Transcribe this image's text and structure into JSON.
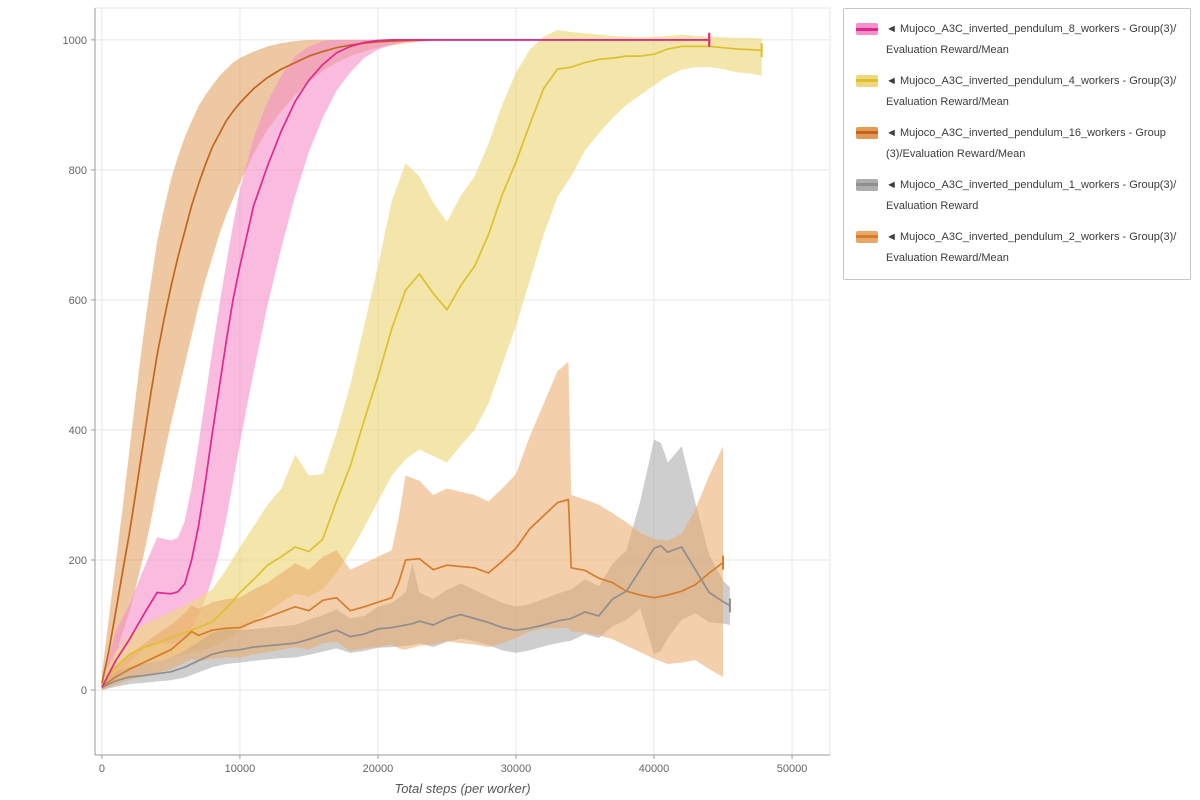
{
  "chart_data": {
    "type": "line",
    "title": "",
    "xlabel": "Total steps (per worker)",
    "ylabel": "",
    "xlim": [
      -500,
      52750
    ],
    "ylim": [
      -100,
      1049
    ],
    "xticks": [
      0,
      10000,
      20000,
      30000,
      40000,
      50000
    ],
    "yticks": [
      0,
      200,
      400,
      600,
      800,
      1000
    ],
    "grid": true,
    "legend_position": "outside-right",
    "series": [
      {
        "key": "8-workers",
        "name": "◄ Mujoco_A3C_inverted_pendulum_8_workers - Group(3)/Evaluation Reward/Mean",
        "color": "#e02890",
        "band_color": "#f590c8",
        "band_opacity": 0.6,
        "x": [
          0,
          1000,
          2000,
          3000,
          4000,
          5000,
          5500,
          6000,
          6500,
          7000,
          7500,
          8000,
          8500,
          9000,
          9500,
          10000,
          11000,
          12000,
          13000,
          14000,
          15000,
          16000,
          17000,
          18000,
          19000,
          20000,
          21000,
          22000,
          24000,
          26000,
          28000,
          30000,
          32000,
          34000,
          36000,
          38000,
          40000,
          42000,
          44000
        ],
        "y": [
          4,
          45,
          78,
          115,
          150,
          148,
          151,
          163,
          200,
          252,
          320,
          395,
          465,
          535,
          600,
          652,
          745,
          806,
          860,
          905,
          938,
          962,
          980,
          990,
          996,
          999,
          1000,
          1000,
          1000,
          1000,
          1000,
          1000,
          1000,
          1000,
          1000,
          1000,
          1000,
          1000,
          1000
        ],
        "lo": [
          0,
          20,
          42,
          62,
          72,
          70,
          72,
          80,
          95,
          115,
          140,
          172,
          212,
          262,
          320,
          380,
          490,
          592,
          680,
          760,
          828,
          880,
          922,
          950,
          972,
          985,
          993,
          997,
          1000,
          1000,
          1000,
          1000,
          1000,
          1000,
          1000,
          1000,
          1000,
          1000,
          1000
        ],
        "hi": [
          12,
          90,
          132,
          185,
          235,
          230,
          234,
          260,
          312,
          378,
          450,
          522,
          590,
          655,
          715,
          770,
          850,
          905,
          945,
          975,
          990,
          998,
          1000,
          1000,
          1000,
          1000,
          1000,
          1000,
          1000,
          1000,
          1000,
          1000,
          1000,
          1000,
          1000,
          1000,
          1000,
          1000,
          1000
        ]
      },
      {
        "key": "4-workers",
        "name": "◄ Mujoco_A3C_inverted_pendulum_4_workers - Group(3)/Evaluation Reward/Mean",
        "color": "#dec02f",
        "band_color": "#eed77e",
        "band_opacity": 0.65,
        "x": [
          0,
          1000,
          2000,
          3000,
          4000,
          5000,
          6000,
          7000,
          8000,
          9000,
          10000,
          11000,
          12000,
          13000,
          14000,
          15000,
          16000,
          17000,
          18000,
          19000,
          20000,
          21000,
          22000,
          23000,
          24000,
          25000,
          26000,
          27000,
          28000,
          29000,
          30000,
          31000,
          32000,
          33000,
          34000,
          35000,
          36000,
          37000,
          38000,
          39000,
          40000,
          41000,
          42000,
          43000,
          44000,
          45000,
          46000,
          47000,
          47800
        ],
        "y": [
          8,
          35,
          55,
          65,
          72,
          80,
          88,
          96,
          105,
          125,
          150,
          170,
          192,
          205,
          220,
          213,
          232,
          290,
          345,
          415,
          482,
          556,
          615,
          640,
          610,
          585,
          622,
          652,
          700,
          762,
          812,
          870,
          925,
          955,
          958,
          965,
          970,
          972,
          975,
          975,
          978,
          986,
          990,
          990,
          990,
          988,
          986,
          985,
          984
        ],
        "lo": [
          0,
          15,
          30,
          38,
          45,
          50,
          55,
          60,
          66,
          76,
          90,
          105,
          120,
          135,
          148,
          144,
          155,
          180,
          212,
          250,
          290,
          330,
          355,
          370,
          360,
          350,
          376,
          400,
          440,
          500,
          560,
          630,
          700,
          758,
          790,
          830,
          856,
          880,
          900,
          915,
          930,
          944,
          954,
          958,
          958,
          955,
          950,
          948,
          945
        ],
        "hi": [
          18,
          60,
          85,
          100,
          110,
          120,
          130,
          142,
          155,
          185,
          220,
          252,
          285,
          310,
          362,
          330,
          332,
          395,
          470,
          560,
          652,
          752,
          810,
          790,
          750,
          720,
          760,
          790,
          840,
          900,
          950,
          985,
          1005,
          1015,
          1012,
          1010,
          1008,
          1006,
          1005,
          1004,
          1005,
          1006,
          1008,
          1006,
          1005,
          1004,
          1003,
          1003,
          1002
        ]
      },
      {
        "key": "16-workers",
        "name": "◄ Mujoco_A3C_inverted_pendulum_16_workers - Group(3)/Evaluation Reward/Mean",
        "color": "#c4651d",
        "band_color": "#e09a55",
        "band_opacity": 0.55,
        "x": [
          0,
          500,
          1000,
          1500,
          2000,
          2500,
          3000,
          3500,
          4000,
          4500,
          5000,
          5500,
          6000,
          6500,
          7000,
          7500,
          8000,
          8500,
          9000,
          9500,
          10000,
          11000,
          12000,
          13000,
          14000,
          15000,
          16000,
          17000,
          18000,
          19000,
          20000,
          22000,
          24000,
          26000,
          28000,
          30000,
          32000,
          34000,
          36000,
          38000,
          40000,
          42000,
          44000
        ],
        "y": [
          10,
          60,
          120,
          182,
          242,
          310,
          380,
          450,
          515,
          570,
          620,
          665,
          705,
          745,
          778,
          808,
          835,
          855,
          875,
          890,
          903,
          925,
          942,
          955,
          965,
          975,
          982,
          988,
          992,
          995,
          997,
          999,
          1000,
          1000,
          1000,
          1000,
          1000,
          1000,
          1000,
          1000,
          1000,
          1000,
          1000
        ],
        "lo": [
          0,
          25,
          55,
          88,
          120,
          162,
          205,
          255,
          310,
          360,
          410,
          455,
          500,
          545,
          590,
          630,
          665,
          700,
          730,
          755,
          780,
          825,
          862,
          890,
          915,
          935,
          952,
          965,
          975,
          982,
          988,
          995,
          999,
          1000,
          1000,
          1000,
          1000,
          1000,
          1000,
          1000,
          1000,
          1000,
          1000
        ],
        "hi": [
          25,
          110,
          195,
          280,
          370,
          460,
          545,
          620,
          690,
          740,
          785,
          820,
          850,
          875,
          898,
          915,
          930,
          944,
          955,
          965,
          972,
          982,
          990,
          995,
          998,
          1000,
          1000,
          1000,
          1000,
          1000,
          1000,
          1000,
          1000,
          1000,
          1000,
          1000,
          1000,
          1000,
          1000,
          1000,
          1000,
          1000,
          1000
        ]
      },
      {
        "key": "1-workers",
        "name": "◄ Mujoco_A3C_inverted_pendulum_1_workers - Group(3)/Evaluation Reward",
        "color": "#8f8f8f",
        "band_color": "#adadad",
        "band_opacity": 0.6,
        "x": [
          0,
          1000,
          2000,
          3000,
          4000,
          5000,
          6000,
          7000,
          8000,
          9000,
          10000,
          11000,
          12000,
          13000,
          14000,
          15000,
          16000,
          17000,
          18000,
          19000,
          20000,
          21000,
          22000,
          22500,
          23000,
          24000,
          25000,
          26000,
          27000,
          28000,
          29000,
          30000,
          31000,
          32000,
          33000,
          34000,
          35000,
          36000,
          37000,
          38000,
          39000,
          40000,
          40500,
          41000,
          42000,
          43000,
          44000,
          45000,
          45500
        ],
        "y": [
          4,
          14,
          20,
          22,
          25,
          28,
          35,
          45,
          55,
          60,
          62,
          66,
          68,
          70,
          72,
          78,
          85,
          92,
          82,
          86,
          94,
          96,
          100,
          102,
          106,
          100,
          110,
          116,
          110,
          104,
          96,
          92,
          95,
          100,
          106,
          110,
          120,
          114,
          140,
          152,
          185,
          218,
          222,
          212,
          220,
          185,
          150,
          136,
          130
        ],
        "lo": [
          0,
          5,
          9,
          11,
          13,
          15,
          19,
          27,
          35,
          40,
          42,
          45,
          47,
          49,
          50,
          54,
          59,
          64,
          57,
          60,
          65,
          66,
          68,
          69,
          72,
          66,
          74,
          79,
          75,
          69,
          61,
          57,
          61,
          67,
          72,
          76,
          86,
          80,
          98,
          108,
          125,
          55,
          60,
          80,
          108,
          118,
          104,
          102,
          100
        ],
        "hi": [
          10,
          28,
          36,
          40,
          44,
          50,
          60,
          74,
          88,
          94,
          92,
          94,
          96,
          98,
          100,
          108,
          115,
          124,
          110,
          114,
          128,
          134,
          150,
          195,
          150,
          140,
          154,
          164,
          154,
          144,
          134,
          128,
          132,
          140,
          148,
          155,
          170,
          160,
          194,
          215,
          290,
          385,
          380,
          350,
          375,
          288,
          208,
          168,
          158
        ]
      },
      {
        "key": "2-workers",
        "name": "◄ Mujoco_A3C_inverted_pendulum_2_workers - Group(3)/Evaluation Reward/Mean",
        "color": "#d67d2b",
        "band_color": "#e9a868",
        "band_opacity": 0.55,
        "x": [
          0,
          1000,
          2000,
          3000,
          4000,
          5000,
          6000,
          6500,
          7000,
          8000,
          9000,
          10000,
          11000,
          12000,
          13000,
          14000,
          15000,
          16000,
          17000,
          18000,
          19000,
          20000,
          21000,
          21500,
          22000,
          23000,
          24000,
          25000,
          26000,
          27000,
          28000,
          29000,
          30000,
          31000,
          32000,
          33000,
          33800,
          34000,
          35000,
          36000,
          37000,
          38000,
          39000,
          40000,
          41000,
          42000,
          43000,
          44000,
          45000
        ],
        "y": [
          5,
          20,
          32,
          42,
          52,
          62,
          80,
          90,
          84,
          92,
          95,
          96,
          105,
          112,
          120,
          128,
          122,
          138,
          142,
          122,
          128,
          135,
          142,
          165,
          200,
          202,
          185,
          192,
          190,
          188,
          180,
          198,
          218,
          248,
          268,
          288,
          293,
          188,
          184,
          172,
          165,
          152,
          146,
          142,
          146,
          152,
          162,
          180,
          196
        ],
        "lo": [
          0,
          8,
          15,
          21,
          26,
          32,
          42,
          48,
          44,
          48,
          50,
          50,
          55,
          58,
          62,
          66,
          62,
          72,
          74,
          60,
          64,
          66,
          70,
          64,
          62,
          68,
          70,
          75,
          72,
          70,
          66,
          72,
          80,
          90,
          95,
          95,
          96,
          90,
          88,
          84,
          78,
          68,
          58,
          48,
          40,
          42,
          46,
          32,
          20
        ],
        "hi": [
          12,
          38,
          55,
          70,
          86,
          100,
          118,
          130,
          125,
          135,
          140,
          142,
          155,
          165,
          180,
          195,
          185,
          205,
          215,
          185,
          195,
          205,
          215,
          265,
          330,
          322,
          300,
          310,
          305,
          300,
          290,
          310,
          332,
          390,
          440,
          490,
          505,
          300,
          293,
          285,
          272,
          258,
          242,
          232,
          230,
          240,
          278,
          330,
          375
        ]
      }
    ]
  }
}
